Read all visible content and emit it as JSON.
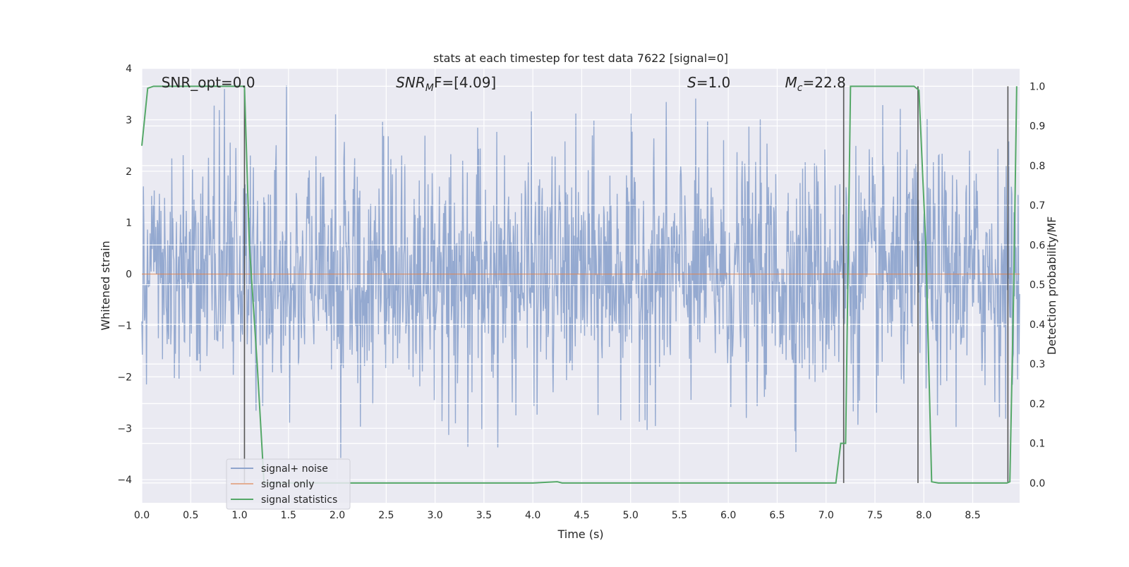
{
  "chart_data": {
    "type": "line",
    "title": "stats at each timestep for test data 7622 [signal=0]",
    "xlabel": "Time (s)",
    "ylabel": "Whitened strain",
    "ylabel_right": "Detection probability/MF",
    "xlim": [
      0.0,
      8.98
    ],
    "ylim": [
      -4.45,
      4.0
    ],
    "ylim_right": [
      -0.05,
      1.045
    ],
    "x_ticks": [
      0.0,
      0.5,
      1.0,
      1.5,
      2.0,
      2.5,
      3.0,
      3.5,
      4.0,
      4.5,
      5.0,
      5.5,
      6.0,
      6.5,
      7.0,
      7.5,
      8.0,
      8.5
    ],
    "x_tick_labels": [
      "0.0",
      "0.5",
      "1.0",
      "1.5",
      "2.0",
      "2.5",
      "3.0",
      "3.5",
      "4.0",
      "4.5",
      "5.0",
      "5.5",
      "6.0",
      "6.5",
      "7.0",
      "7.5",
      "8.0",
      "8.5"
    ],
    "y_ticks": [
      4,
      3,
      2,
      1,
      0,
      -1,
      -2,
      -3,
      -4
    ],
    "y_tick_labels": [
      "4",
      "3",
      "2",
      "1",
      "0",
      "−1",
      "−2",
      "−3",
      "−4"
    ],
    "y_right_ticks": [
      1.0,
      0.9,
      0.8,
      0.7,
      0.6,
      0.5,
      0.4,
      0.3,
      0.2,
      0.1,
      0.0
    ],
    "y_right_tick_labels": [
      "1.0",
      "0.9",
      "0.8",
      "0.7",
      "0.6",
      "0.5",
      "0.4",
      "0.3",
      "0.2",
      "0.1",
      "0.0"
    ],
    "grid": true,
    "legend_position": "lower-left",
    "annotations": [
      {
        "id": "snr-opt",
        "text": "SNR_opt=0.0",
        "x": 0.2
      },
      {
        "id": "snr-mf",
        "prefix": "SNR",
        "sub": "M",
        "suffix": "F=[4.09]",
        "x": 2.6
      },
      {
        "id": "s-value",
        "prefix": "S",
        "suffix": "=1.0",
        "x": 5.58
      },
      {
        "id": "mc-value",
        "prefix": "M",
        "sub": "c",
        "suffix": "=22.8",
        "x": 6.58
      }
    ],
    "series": [
      {
        "name": "signal+ noise",
        "color": "#8fa5cd",
        "generated_noise": {
          "std": 1.0,
          "n": 1700,
          "clip": 4.0
        }
      },
      {
        "name": "signal only",
        "color": "#dd8452",
        "x": [
          0.0,
          8.98
        ],
        "y": [
          0.0,
          0.0
        ]
      },
      {
        "name": "signal statistics",
        "color": "#55a868",
        "axis": "right",
        "x": [
          0.0,
          0.06,
          0.12,
          0.5,
          1.0,
          1.05,
          1.1,
          1.18,
          1.25,
          4.0,
          4.25,
          4.3,
          7.1,
          7.15,
          7.2,
          7.25,
          7.9,
          7.95,
          8.02,
          8.08,
          8.15,
          8.85,
          8.88,
          8.92,
          8.95
        ],
        "y": [
          0.85,
          0.995,
          1.0,
          1.0,
          1.0,
          1.0,
          0.6,
          0.3,
          0.0,
          0.0,
          0.003,
          0.0,
          0.0,
          0.1,
          0.1,
          1.0,
          1.0,
          0.99,
          0.6,
          0.003,
          0.0,
          0.0,
          0.003,
          0.5,
          1.0
        ]
      }
    ],
    "vertical_lines": {
      "color": "#555555",
      "x": [
        1.05,
        7.18,
        7.94,
        8.86
      ],
      "y_top_right": [
        1.0,
        1.0,
        1.0,
        1.0
      ]
    }
  }
}
